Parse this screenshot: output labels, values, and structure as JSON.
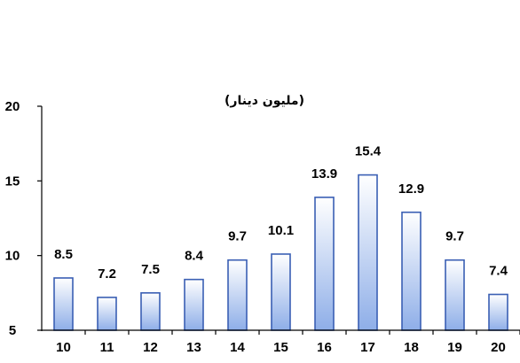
{
  "chart_data": {
    "type": "bar",
    "title": "",
    "unit_label": "(مليون دينار)",
    "xlabel": "",
    "ylabel": "",
    "categories": [
      "10",
      "11",
      "12",
      "13",
      "14",
      "15",
      "16",
      "17",
      "18",
      "19",
      "20"
    ],
    "values": [
      8.5,
      7.2,
      7.5,
      8.4,
      9.7,
      10.1,
      13.9,
      15.4,
      12.9,
      9.7,
      7.4
    ],
    "data_labels": [
      "8.5",
      "7.2",
      "7.5",
      "8.4",
      "9.7",
      "10.1",
      "13.9",
      "15.4",
      "12.9",
      "9.7",
      "7.4"
    ],
    "ylim": [
      5,
      20
    ],
    "yticks": [
      "5",
      "10",
      "15",
      "20"
    ],
    "grid": false,
    "legend": "none",
    "bar_fill_top": "#ffffff",
    "bar_fill_bottom": "#8eaee8",
    "bar_stroke": "#3a5fb4"
  }
}
